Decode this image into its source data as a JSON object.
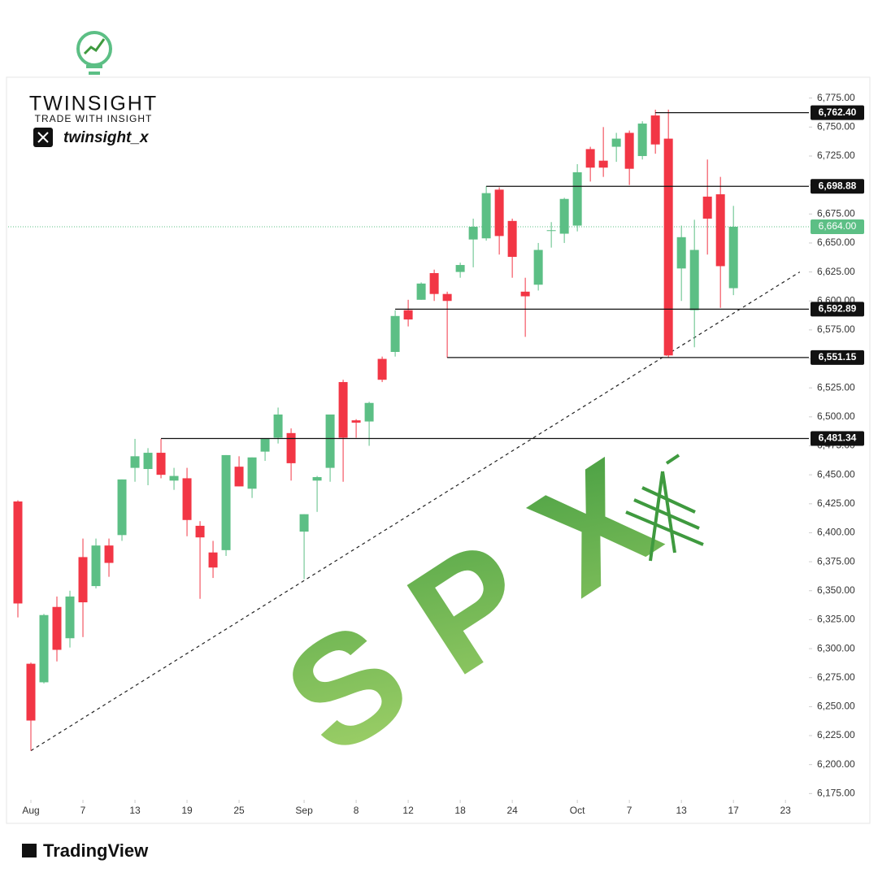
{
  "chart_data": {
    "type": "candlestick",
    "brand": {
      "name": "TWINSIGHT",
      "tagline": "TRADE WITH INSIGHT",
      "handle": "twinsight_x"
    },
    "watermark": "SPX",
    "footer": "TradingView",
    "x": [
      0,
      1,
      2,
      3,
      4,
      5,
      6,
      7,
      8,
      9,
      10,
      11,
      12,
      13,
      14,
      15,
      16,
      17,
      18,
      19,
      20,
      21,
      22,
      23,
      24,
      25,
      26,
      27,
      28,
      29,
      30,
      31,
      32,
      33,
      34,
      35,
      36,
      37,
      38,
      39,
      40,
      41,
      42,
      43,
      44,
      45,
      46,
      47,
      48,
      49,
      50,
      51,
      52,
      53,
      54,
      55
    ],
    "open": [
      6427,
      6287,
      6271,
      6336,
      6309,
      6379,
      6354,
      6389,
      6398,
      6456,
      6455,
      6469,
      6445,
      6447,
      6406,
      6383,
      6385,
      6457,
      6438,
      6470,
      6482,
      6486,
      6401,
      6445,
      6456,
      6530,
      6497,
      6496,
      6550,
      6556,
      6592,
      6601,
      6624,
      6606,
      6625,
      6653,
      6654,
      6696,
      6669,
      6608,
      6614,
      6661,
      6658,
      6665,
      6731,
      6721,
      6733,
      6745,
      6725,
      6760,
      6740,
      6628,
      6592,
      6690,
      6692,
      6611
    ],
    "high": [
      6428,
      6288,
      6330,
      6345,
      6350,
      6395,
      6395,
      6395,
      6446,
      6481,
      6473,
      6481,
      6456,
      6456,
      6410,
      6393,
      6467,
      6466,
      6465,
      6481,
      6508,
      6490,
      6416,
      6449,
      6502,
      6532,
      6498,
      6513,
      6552,
      6592,
      6601,
      6616,
      6627,
      6608,
      6633,
      6671,
      6699,
      6698,
      6671,
      6620,
      6650,
      6668,
      6689,
      6718,
      6733,
      6750,
      6745,
      6747,
      6755,
      6765,
      6765,
      6665,
      6670,
      6722,
      6707,
      6682
    ],
    "low": [
      6327,
      6212,
      6270,
      6289,
      6301,
      6310,
      6352,
      6362,
      6393,
      6444,
      6441,
      6447,
      6437,
      6397,
      6343,
      6361,
      6380,
      6440,
      6430,
      6462,
      6477,
      6445,
      6360,
      6418,
      6444,
      6444,
      6482,
      6475,
      6530,
      6552,
      6578,
      6601,
      6600,
      6551,
      6620,
      6629,
      6652,
      6640,
      6620,
      6569,
      6609,
      6646,
      6650,
      6660,
      6703,
      6707,
      6720,
      6700,
      6722,
      6727,
      6551,
      6600,
      6560,
      6640,
      6594,
      6605
    ],
    "close": [
      6339,
      6238,
      6329,
      6299,
      6345,
      6340,
      6389,
      6374,
      6446,
      6466,
      6469,
      6450,
      6449,
      6411,
      6396,
      6370,
      6467,
      6440,
      6465,
      6481,
      6502,
      6460,
      6416,
      6448,
      6502,
      6482,
      6495,
      6512,
      6532,
      6587,
      6584,
      6615,
      6606,
      6600,
      6631,
      6664,
      6693,
      6656,
      6638,
      6604,
      6644,
      6661,
      6688,
      6711,
      6715,
      6715,
      6740,
      6714,
      6753,
      6735,
      6553,
      6655,
      6644,
      6671,
      6630,
      6664
    ],
    "up_color": "#5cbf85",
    "down_color": "#f23645",
    "xlim": [
      -0.75,
      60.8
    ],
    "xticks": [
      {
        "value": 1,
        "label": "Aug"
      },
      {
        "value": 5,
        "label": "7"
      },
      {
        "value": 9,
        "label": "13"
      },
      {
        "value": 13,
        "label": "19"
      },
      {
        "value": 17,
        "label": "25"
      },
      {
        "value": 22,
        "label": "Sep"
      },
      {
        "value": 26,
        "label": "8"
      },
      {
        "value": 30,
        "label": "12"
      },
      {
        "value": 34,
        "label": "18"
      },
      {
        "value": 38,
        "label": "24"
      },
      {
        "value": 43,
        "label": "Oct"
      },
      {
        "value": 47,
        "label": "7"
      },
      {
        "value": 51,
        "label": "13"
      },
      {
        "value": 55,
        "label": "17"
      },
      {
        "value": 59,
        "label": "23"
      }
    ],
    "ylim": [
      6150,
      6793
    ],
    "yticks": [
      {
        "value": 6175,
        "label": "6,175.00"
      },
      {
        "value": 6200,
        "label": "6,200.00"
      },
      {
        "value": 6225,
        "label": "6,225.00"
      },
      {
        "value": 6250,
        "label": "6,250.00"
      },
      {
        "value": 6275,
        "label": "6,275.00"
      },
      {
        "value": 6300,
        "label": "6,300.00"
      },
      {
        "value": 6325,
        "label": "6,325.00"
      },
      {
        "value": 6350,
        "label": "6,350.00"
      },
      {
        "value": 6375,
        "label": "6,375.00"
      },
      {
        "value": 6400,
        "label": "6,400.00"
      },
      {
        "value": 6425,
        "label": "6,425.00"
      },
      {
        "value": 6450,
        "label": "6,450.00"
      },
      {
        "value": 6475,
        "label": "6,475.00"
      },
      {
        "value": 6500,
        "label": "6,500.00"
      },
      {
        "value": 6525,
        "label": "6,525.00"
      },
      {
        "value": 6550,
        "label": "6,550.00"
      },
      {
        "value": 6575,
        "label": "6,575.00"
      },
      {
        "value": 6600,
        "label": "6,600.00"
      },
      {
        "value": 6625,
        "label": "6,625.00"
      },
      {
        "value": 6650,
        "label": "6,650.00"
      },
      {
        "value": 6675,
        "label": "6,675.00"
      },
      {
        "value": 6700,
        "label": "6,700.00"
      },
      {
        "value": 6725,
        "label": "6,725.00"
      },
      {
        "value": 6750,
        "label": "6,750.00"
      },
      {
        "value": 6775,
        "label": "6,775.00"
      }
    ],
    "levels": {
      "values": [
        6762.4,
        6698.88,
        6592.89,
        6551.15,
        6481.34
      ],
      "value_labels": [
        "6,762.40",
        "6,698.88",
        "6,592.89",
        "6,551.15",
        "6,481.34"
      ],
      "x_start": [
        49,
        36,
        29,
        33,
        11
      ]
    },
    "last_price": {
      "value": 6664.0,
      "label": "6,664.00"
    },
    "trendline": {
      "x": [
        1,
        60.1
      ],
      "values": [
        6212,
        6625
      ]
    }
  }
}
